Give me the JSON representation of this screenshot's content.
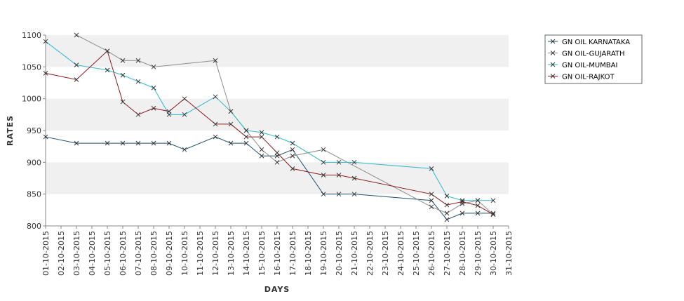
{
  "chart_data": {
    "type": "line",
    "title": "",
    "xlabel": "DAYS",
    "ylabel": "RATES",
    "ylim": [
      800,
      1100
    ],
    "yticks": [
      800,
      850,
      900,
      950,
      1000,
      1050,
      1100
    ],
    "grid": "alternating horizontal bands",
    "legend_position": "top-right",
    "x": [
      "01-10-2015",
      "02-10-2015",
      "03-10-2015",
      "04-10-2015",
      "05-10-2015",
      "06-10-2015",
      "07-10-2015",
      "08-10-2015",
      "09-10-2015",
      "10-10-2015",
      "11-10-2015",
      "12-10-2015",
      "13-10-2015",
      "14-10-2015",
      "15-10-2015",
      "16-10-2015",
      "17-10-2015",
      "18-10-2015",
      "19-10-2015",
      "20-10-2015",
      "21-10-2015",
      "22-10-2015",
      "23-10-2015",
      "24-10-2015",
      "25-10-2015",
      "26-10-2015",
      "27-10-2015",
      "28-10-2015",
      "29-10-2015",
      "30-10-2015",
      "31-10-2015"
    ],
    "series": [
      {
        "name": "GN OIL KARNATAKA",
        "color": "#1f4f6f",
        "points": [
          [
            "01-10-2015",
            940
          ],
          [
            "03-10-2015",
            930
          ],
          [
            "05-10-2015",
            930
          ],
          [
            "06-10-2015",
            930
          ],
          [
            "07-10-2015",
            930
          ],
          [
            "08-10-2015",
            930
          ],
          [
            "09-10-2015",
            930
          ],
          [
            "10-10-2015",
            920
          ],
          [
            "12-10-2015",
            940
          ],
          [
            "13-10-2015",
            930
          ],
          [
            "14-10-2015",
            930
          ],
          [
            "15-10-2015",
            910
          ],
          [
            "16-10-2015",
            910
          ],
          [
            "17-10-2015",
            920
          ],
          [
            "19-10-2015",
            850
          ],
          [
            "20-10-2015",
            850
          ],
          [
            "21-10-2015",
            850
          ],
          [
            "26-10-2015",
            840
          ],
          [
            "27-10-2015",
            810
          ],
          [
            "28-10-2015",
            820
          ],
          [
            "29-10-2015",
            820
          ],
          [
            "30-10-2015",
            820
          ]
        ]
      },
      {
        "name": "GN OIL-GUJARATH",
        "color": "#8c8c8c",
        "points": [
          [
            "03-10-2015",
            1100
          ],
          [
            "05-10-2015",
            1075
          ],
          [
            "06-10-2015",
            1060
          ],
          [
            "07-10-2015",
            1060
          ],
          [
            "08-10-2015",
            1050
          ],
          [
            "12-10-2015",
            1060
          ],
          [
            "13-10-2015",
            980
          ],
          [
            "14-10-2015",
            950
          ],
          [
            "15-10-2015",
            920
          ],
          [
            "16-10-2015",
            900
          ],
          [
            "17-10-2015",
            910
          ],
          [
            "19-10-2015",
            920
          ],
          [
            "26-10-2015",
            830
          ],
          [
            "27-10-2015",
            820
          ],
          [
            "28-10-2015",
            835
          ],
          [
            "29-10-2015",
            840
          ],
          [
            "30-10-2015",
            818
          ]
        ]
      },
      {
        "name": "GN OIL-MUMBAI",
        "color": "#2ab8cc",
        "points": [
          [
            "01-10-2015",
            1090
          ],
          [
            "03-10-2015",
            1053
          ],
          [
            "05-10-2015",
            1045
          ],
          [
            "06-10-2015",
            1037
          ],
          [
            "07-10-2015",
            1027
          ],
          [
            "08-10-2015",
            1017
          ],
          [
            "09-10-2015",
            975
          ],
          [
            "10-10-2015",
            975
          ],
          [
            "12-10-2015",
            1003
          ],
          [
            "13-10-2015",
            980
          ],
          [
            "14-10-2015",
            950
          ],
          [
            "15-10-2015",
            947
          ],
          [
            "16-10-2015",
            940
          ],
          [
            "17-10-2015",
            930
          ],
          [
            "19-10-2015",
            900
          ],
          [
            "20-10-2015",
            900
          ],
          [
            "21-10-2015",
            900
          ],
          [
            "26-10-2015",
            890
          ],
          [
            "27-10-2015",
            847
          ],
          [
            "28-10-2015",
            840
          ],
          [
            "29-10-2015",
            840
          ],
          [
            "30-10-2015",
            840
          ]
        ]
      },
      {
        "name": "GN OIL-RAJKOT",
        "color": "#8b1a1a",
        "points": [
          [
            "01-10-2015",
            1040
          ],
          [
            "03-10-2015",
            1030
          ],
          [
            "05-10-2015",
            1075
          ],
          [
            "06-10-2015",
            995
          ],
          [
            "07-10-2015",
            975
          ],
          [
            "08-10-2015",
            985
          ],
          [
            "09-10-2015",
            980
          ],
          [
            "10-10-2015",
            1000
          ],
          [
            "12-10-2015",
            960
          ],
          [
            "13-10-2015",
            960
          ],
          [
            "14-10-2015",
            940
          ],
          [
            "15-10-2015",
            940
          ],
          [
            "16-10-2015",
            915
          ],
          [
            "17-10-2015",
            890
          ],
          [
            "19-10-2015",
            880
          ],
          [
            "20-10-2015",
            880
          ],
          [
            "21-10-2015",
            875
          ],
          [
            "26-10-2015",
            850
          ],
          [
            "27-10-2015",
            833
          ],
          [
            "28-10-2015",
            838
          ],
          [
            "29-10-2015",
            832
          ],
          [
            "30-10-2015",
            818
          ]
        ]
      }
    ]
  }
}
